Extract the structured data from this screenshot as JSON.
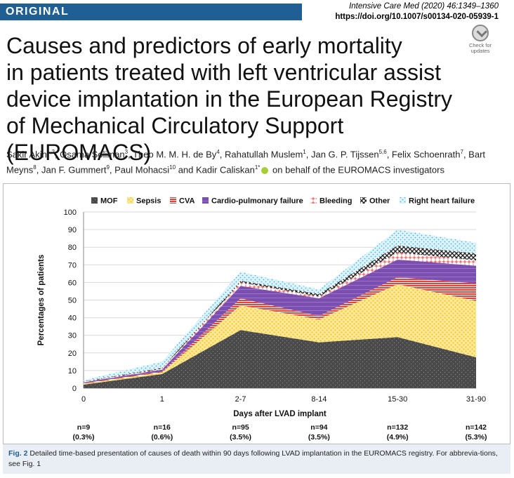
{
  "header": {
    "badge": "ORIGINAL",
    "journal": "Intensive Care Med (2020) 46:1349–1360",
    "doi": "https://doi.org/10.1007/s00134-020-05939-1",
    "check_updates_line1": "Check for",
    "check_updates_line2": "updates"
  },
  "title": {
    "line1": "Causes and predictors of early mortality",
    "line2": "in patients treated with left ventricular assist",
    "line3": "device implantation in the European Registry",
    "line4": "of Mechanical Circulatory Support (EUROMACS)"
  },
  "authors": {
    "list": [
      {
        "name": "Sakir Akin",
        "sup": "1,2",
        "sep": ", "
      },
      {
        "name": "Osama Soliman",
        "sup": "3",
        "sep": ", "
      },
      {
        "name": "Theo M. M. H. de By",
        "sup": "4",
        "sep": ", "
      },
      {
        "name": "Rahatullah Muslem",
        "sup": "1",
        "sep": ", "
      },
      {
        "name": "Jan G. P. Tijssen",
        "sup": "5,6",
        "sep": ", "
      },
      {
        "name": "Felix Schoenrath",
        "sup": "7",
        "sep": ", "
      },
      {
        "name": "Bart Meyns",
        "sup": "8",
        "sep": ", "
      },
      {
        "name": "Jan F. Gummert",
        "sup": "9",
        "sep": ", "
      },
      {
        "name": "Paul Mohacsi",
        "sup": "10",
        "sep": " and "
      },
      {
        "name": "Kadir Caliskan",
        "sup": "1*",
        "sep": ""
      }
    ],
    "suffix": "on behalf of the EUROMACS investigators"
  },
  "chart_data": {
    "type": "area",
    "stacked": true,
    "categories": [
      "0",
      "1",
      "2-7",
      "8-14",
      "15-30",
      "31-90"
    ],
    "series": [
      {
        "name": "MOF",
        "values": [
          2,
          8,
          33,
          26,
          29,
          17.5
        ],
        "color": "#5a5a5a"
      },
      {
        "name": "Sepsis",
        "values": [
          0.5,
          1,
          14,
          13,
          30,
          32
        ],
        "color": "#f5d54a"
      },
      {
        "name": "CVA",
        "values": [
          0.3,
          0.5,
          4,
          2,
          4,
          10
        ],
        "color": "#e0443a"
      },
      {
        "name": "Cardio-pulmonary failure",
        "values": [
          0.5,
          1,
          7,
          10,
          10,
          10
        ],
        "color": "#7b4fb0"
      },
      {
        "name": "Bleeding",
        "values": [
          0.3,
          0.5,
          2,
          1,
          4,
          3
        ],
        "color": "#e04848"
      },
      {
        "name": "Other",
        "values": [
          0.2,
          0.5,
          1,
          1.5,
          4,
          4
        ],
        "color": "#222222"
      },
      {
        "name": "Right heart failure",
        "values": [
          0.7,
          3.5,
          5,
          2.5,
          9,
          6
        ],
        "color": "#4cc2e8"
      }
    ],
    "ylabel": "Percentages of patients",
    "xlabel": "Days after LVAD implant",
    "ylim": [
      0,
      100
    ],
    "yticks": [
      0,
      10,
      20,
      30,
      40,
      50,
      60,
      70,
      80,
      90,
      100
    ],
    "legend_position": "top",
    "annotations": [
      {
        "n": "n=9",
        "pct": "(0.3%)"
      },
      {
        "n": "n=16",
        "pct": "(0.6%)"
      },
      {
        "n": "n=95",
        "pct": "(3.5%)"
      },
      {
        "n": "n=94",
        "pct": "(3.5%)"
      },
      {
        "n": "n=132",
        "pct": "(4.9%)"
      },
      {
        "n": "n=142",
        "pct": "(5.3%)"
      }
    ]
  },
  "caption": {
    "label": "Fig. 2",
    "text": "Detailed time-based presentation of causes of death within 90 days following LVAD implantation in the EUROMACS registry. For abbrevia-tions, see Fig. 1"
  }
}
